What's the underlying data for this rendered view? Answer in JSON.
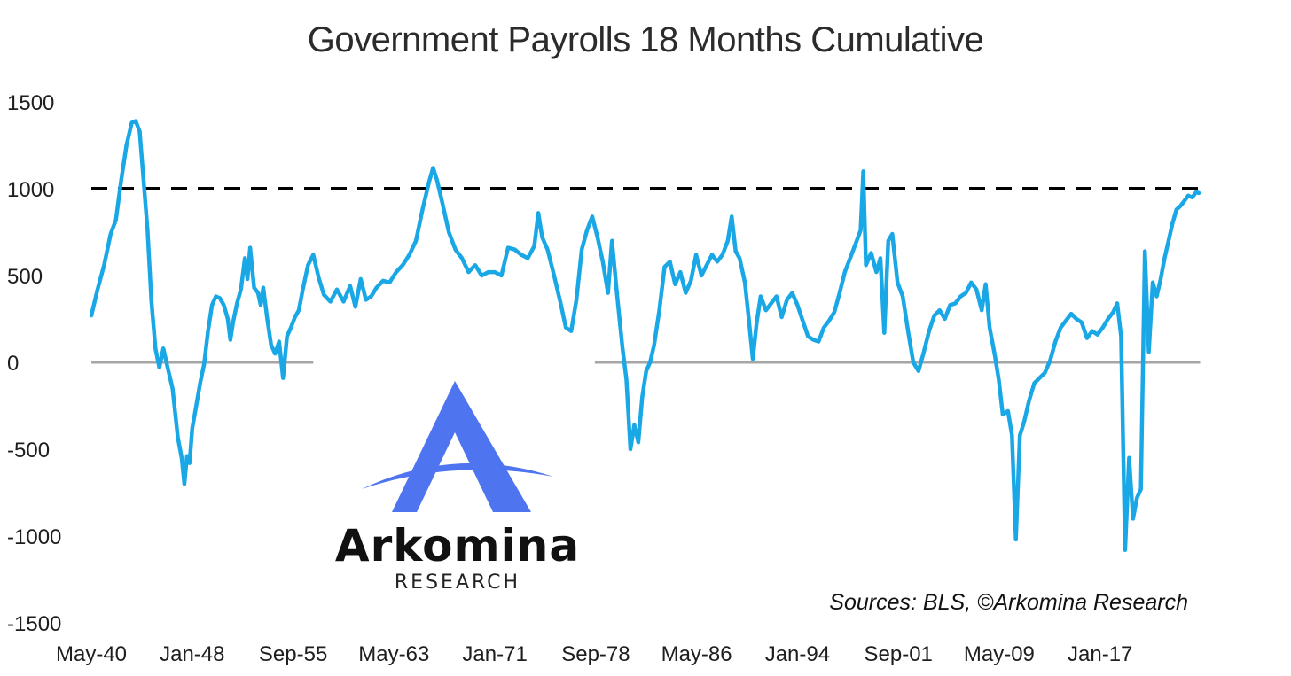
{
  "chart_data": {
    "type": "line",
    "title": "Government Payrolls 18 Months Cumulative",
    "xlabel": "",
    "ylabel": "",
    "ylim": [
      -1500,
      1500
    ],
    "y_ticks": [
      "1500",
      "1000",
      "500",
      "0",
      "-500",
      "-1000",
      "-1500"
    ],
    "x_range": [
      1940.33,
      2024.5
    ],
    "x_ticks": [
      {
        "label": "May-40",
        "x": 1940.33
      },
      {
        "label": "Jan-48",
        "x": 1948.0
      },
      {
        "label": "Sep-55",
        "x": 1955.67
      },
      {
        "label": "May-63",
        "x": 1963.33
      },
      {
        "label": "Jan-71",
        "x": 1971.0
      },
      {
        "label": "Sep-78",
        "x": 1978.67
      },
      {
        "label": "May-86",
        "x": 1986.33
      },
      {
        "label": "Jan-94",
        "x": 1994.0
      },
      {
        "label": "Sep-01",
        "x": 2001.67
      },
      {
        "label": "May-09",
        "x": 2009.33
      },
      {
        "label": "Jan-17",
        "x": 2017.0
      }
    ],
    "reference_line": {
      "y": 1000,
      "style": "dashed",
      "color": "#000000"
    },
    "zero_line_segments": [
      [
        1940.33,
        1957.2
      ],
      [
        1978.6,
        2024.6
      ]
    ],
    "series": [
      {
        "color": "#1aa7e6",
        "points": [
          [
            1940.33,
            270
          ],
          [
            1940.8,
            420
          ],
          [
            1941.3,
            560
          ],
          [
            1941.8,
            740
          ],
          [
            1942.2,
            820
          ],
          [
            1942.6,
            1050
          ],
          [
            1943.0,
            1250
          ],
          [
            1943.4,
            1380
          ],
          [
            1943.7,
            1390
          ],
          [
            1944.0,
            1330
          ],
          [
            1944.3,
            1050
          ],
          [
            1944.6,
            760
          ],
          [
            1944.9,
            350
          ],
          [
            1945.2,
            80
          ],
          [
            1945.5,
            -30
          ],
          [
            1945.8,
            80
          ],
          [
            1946.1,
            -20
          ],
          [
            1946.5,
            -150
          ],
          [
            1946.9,
            -430
          ],
          [
            1947.2,
            -550
          ],
          [
            1947.4,
            -700
          ],
          [
            1947.6,
            -540
          ],
          [
            1947.8,
            -580
          ],
          [
            1948.0,
            -380
          ],
          [
            1948.3,
            -250
          ],
          [
            1948.6,
            -120
          ],
          [
            1948.9,
            -10
          ],
          [
            1949.2,
            180
          ],
          [
            1949.5,
            330
          ],
          [
            1949.8,
            380
          ],
          [
            1950.1,
            370
          ],
          [
            1950.4,
            330
          ],
          [
            1950.7,
            250
          ],
          [
            1950.9,
            130
          ],
          [
            1951.1,
            230
          ],
          [
            1951.4,
            340
          ],
          [
            1951.7,
            420
          ],
          [
            1952.0,
            600
          ],
          [
            1952.2,
            480
          ],
          [
            1952.4,
            660
          ],
          [
            1952.7,
            430
          ],
          [
            1953.0,
            400
          ],
          [
            1953.2,
            330
          ],
          [
            1953.4,
            430
          ],
          [
            1953.7,
            250
          ],
          [
            1954.0,
            100
          ],
          [
            1954.3,
            50
          ],
          [
            1954.6,
            120
          ],
          [
            1954.9,
            -90
          ],
          [
            1955.2,
            150
          ],
          [
            1955.5,
            200
          ],
          [
            1955.8,
            260
          ],
          [
            1956.1,
            300
          ],
          [
            1956.4,
            420
          ],
          [
            1956.8,
            560
          ],
          [
            1957.2,
            620
          ],
          [
            1957.6,
            490
          ],
          [
            1958.0,
            390
          ],
          [
            1958.5,
            350
          ],
          [
            1959.0,
            420
          ],
          [
            1959.5,
            350
          ],
          [
            1960.0,
            440
          ],
          [
            1960.4,
            320
          ],
          [
            1960.8,
            480
          ],
          [
            1961.2,
            360
          ],
          [
            1961.6,
            380
          ],
          [
            1962.0,
            430
          ],
          [
            1962.5,
            470
          ],
          [
            1963.0,
            460
          ],
          [
            1963.5,
            520
          ],
          [
            1964.0,
            560
          ],
          [
            1964.5,
            620
          ],
          [
            1965.0,
            700
          ],
          [
            1965.5,
            880
          ],
          [
            1966.0,
            1040
          ],
          [
            1966.3,
            1120
          ],
          [
            1966.6,
            1050
          ],
          [
            1967.0,
            920
          ],
          [
            1967.5,
            750
          ],
          [
            1968.0,
            650
          ],
          [
            1968.5,
            600
          ],
          [
            1969.0,
            520
          ],
          [
            1969.5,
            560
          ],
          [
            1970.0,
            500
          ],
          [
            1970.5,
            520
          ],
          [
            1971.0,
            520
          ],
          [
            1971.5,
            500
          ],
          [
            1972.0,
            660
          ],
          [
            1972.5,
            650
          ],
          [
            1973.0,
            620
          ],
          [
            1973.5,
            600
          ],
          [
            1974.0,
            670
          ],
          [
            1974.3,
            860
          ],
          [
            1974.6,
            720
          ],
          [
            1975.0,
            650
          ],
          [
            1975.5,
            500
          ],
          [
            1976.0,
            340
          ],
          [
            1976.4,
            200
          ],
          [
            1976.8,
            180
          ],
          [
            1977.2,
            360
          ],
          [
            1977.6,
            650
          ],
          [
            1978.0,
            760
          ],
          [
            1978.4,
            840
          ],
          [
            1978.8,
            720
          ],
          [
            1979.2,
            580
          ],
          [
            1979.6,
            400
          ],
          [
            1979.9,
            700
          ],
          [
            1980.3,
            380
          ],
          [
            1980.7,
            80
          ],
          [
            1981.0,
            -100
          ],
          [
            1981.3,
            -500
          ],
          [
            1981.6,
            -360
          ],
          [
            1981.9,
            -460
          ],
          [
            1982.2,
            -200
          ],
          [
            1982.5,
            -50
          ],
          [
            1982.8,
            0
          ],
          [
            1983.1,
            100
          ],
          [
            1983.5,
            300
          ],
          [
            1983.9,
            550
          ],
          [
            1984.3,
            580
          ],
          [
            1984.7,
            450
          ],
          [
            1985.1,
            520
          ],
          [
            1985.5,
            400
          ],
          [
            1985.9,
            470
          ],
          [
            1986.3,
            620
          ],
          [
            1986.7,
            500
          ],
          [
            1987.1,
            560
          ],
          [
            1987.5,
            620
          ],
          [
            1987.9,
            580
          ],
          [
            1988.3,
            620
          ],
          [
            1988.7,
            700
          ],
          [
            1989.0,
            840
          ],
          [
            1989.3,
            640
          ],
          [
            1989.6,
            600
          ],
          [
            1990.0,
            460
          ],
          [
            1990.3,
            250
          ],
          [
            1990.6,
            20
          ],
          [
            1990.9,
            230
          ],
          [
            1991.2,
            380
          ],
          [
            1991.6,
            300
          ],
          [
            1992.0,
            340
          ],
          [
            1992.4,
            380
          ],
          [
            1992.8,
            260
          ],
          [
            1993.2,
            360
          ],
          [
            1993.6,
            400
          ],
          [
            1994.0,
            330
          ],
          [
            1994.4,
            240
          ],
          [
            1994.8,
            150
          ],
          [
            1995.2,
            130
          ],
          [
            1995.6,
            120
          ],
          [
            1996.0,
            200
          ],
          [
            1996.4,
            240
          ],
          [
            1996.8,
            290
          ],
          [
            1997.2,
            400
          ],
          [
            1997.6,
            520
          ],
          [
            1998.0,
            600
          ],
          [
            1998.4,
            680
          ],
          [
            1998.8,
            760
          ],
          [
            1999.0,
            1100
          ],
          [
            1999.2,
            560
          ],
          [
            1999.6,
            630
          ],
          [
            2000.0,
            520
          ],
          [
            2000.3,
            600
          ],
          [
            2000.6,
            170
          ],
          [
            2000.9,
            700
          ],
          [
            2001.2,
            740
          ],
          [
            2001.6,
            460
          ],
          [
            2002.0,
            380
          ],
          [
            2002.4,
            180
          ],
          [
            2002.8,
            0
          ],
          [
            2003.2,
            -50
          ],
          [
            2003.6,
            60
          ],
          [
            2004.0,
            180
          ],
          [
            2004.4,
            270
          ],
          [
            2004.8,
            300
          ],
          [
            2005.2,
            250
          ],
          [
            2005.6,
            330
          ],
          [
            2006.0,
            340
          ],
          [
            2006.4,
            380
          ],
          [
            2006.8,
            400
          ],
          [
            2007.2,
            460
          ],
          [
            2007.6,
            420
          ],
          [
            2008.0,
            300
          ],
          [
            2008.3,
            450
          ],
          [
            2008.6,
            200
          ],
          [
            2009.0,
            40
          ],
          [
            2009.3,
            -100
          ],
          [
            2009.6,
            -300
          ],
          [
            2010.0,
            -280
          ],
          [
            2010.3,
            -420
          ],
          [
            2010.6,
            -1020
          ],
          [
            2010.9,
            -420
          ],
          [
            2011.2,
            -350
          ],
          [
            2011.6,
            -220
          ],
          [
            2012.0,
            -120
          ],
          [
            2012.4,
            -90
          ],
          [
            2012.8,
            -60
          ],
          [
            2013.2,
            10
          ],
          [
            2013.6,
            120
          ],
          [
            2014.0,
            200
          ],
          [
            2014.4,
            240
          ],
          [
            2014.8,
            280
          ],
          [
            2015.2,
            250
          ],
          [
            2015.6,
            230
          ],
          [
            2016.0,
            140
          ],
          [
            2016.4,
            180
          ],
          [
            2016.8,
            160
          ],
          [
            2017.2,
            200
          ],
          [
            2017.6,
            250
          ],
          [
            2018.0,
            290
          ],
          [
            2018.3,
            340
          ],
          [
            2018.6,
            150
          ],
          [
            2018.9,
            -1080
          ],
          [
            2019.2,
            -550
          ],
          [
            2019.5,
            -900
          ],
          [
            2019.8,
            -780
          ],
          [
            2020.1,
            -730
          ],
          [
            2020.4,
            640
          ],
          [
            2020.7,
            60
          ],
          [
            2021.0,
            460
          ],
          [
            2021.3,
            380
          ],
          [
            2021.6,
            480
          ],
          [
            2021.9,
            600
          ],
          [
            2022.2,
            700
          ],
          [
            2022.5,
            800
          ],
          [
            2022.8,
            880
          ],
          [
            2023.1,
            900
          ],
          [
            2023.4,
            930
          ],
          [
            2023.7,
            960
          ],
          [
            2024.0,
            950
          ],
          [
            2024.3,
            980
          ],
          [
            2024.5,
            975
          ]
        ]
      }
    ]
  },
  "logo": {
    "name": "Arkomina",
    "subtitle": "RESEARCH",
    "color": "#4e74f0"
  },
  "source_note": "Sources: BLS, ©Arkomina Research"
}
